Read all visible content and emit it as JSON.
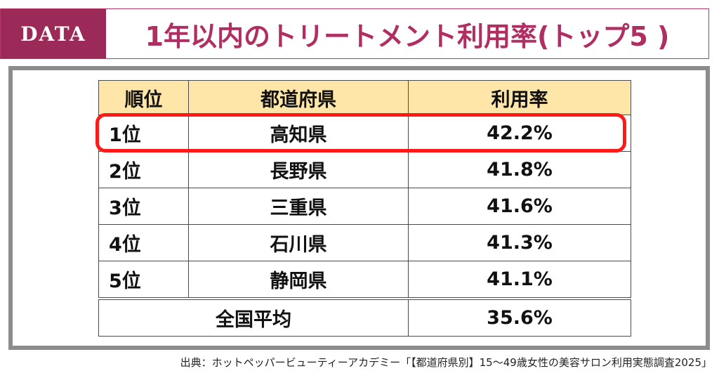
{
  "header": {
    "badge": "DATA",
    "title": "1年以内のトリートメント利用率(トップ5 )"
  },
  "table": {
    "columns": [
      "順位",
      "都道府県",
      "利用率"
    ],
    "rows": [
      {
        "rank": "1位",
        "prefecture": "高知県",
        "rate": "42.2%"
      },
      {
        "rank": "2位",
        "prefecture": "長野県",
        "rate": "41.8%"
      },
      {
        "rank": "3位",
        "prefecture": "三重県",
        "rate": "41.6%"
      },
      {
        "rank": "4位",
        "prefecture": "石川県",
        "rate": "41.3%"
      },
      {
        "rank": "5位",
        "prefecture": "静岡県",
        "rate": "41.1%"
      }
    ],
    "average": {
      "label": "全国平均",
      "rate": "35.6%"
    }
  },
  "source": "出典：ホットペッパービューティーアカデミー「【都道府県別】15～49歳女性の美容サロン利用実態調査2025」",
  "colors": {
    "accent": "#9c2a58",
    "title": "#b02e62",
    "header_fill": "#fde6a8",
    "highlight": "#ff1a1a"
  }
}
